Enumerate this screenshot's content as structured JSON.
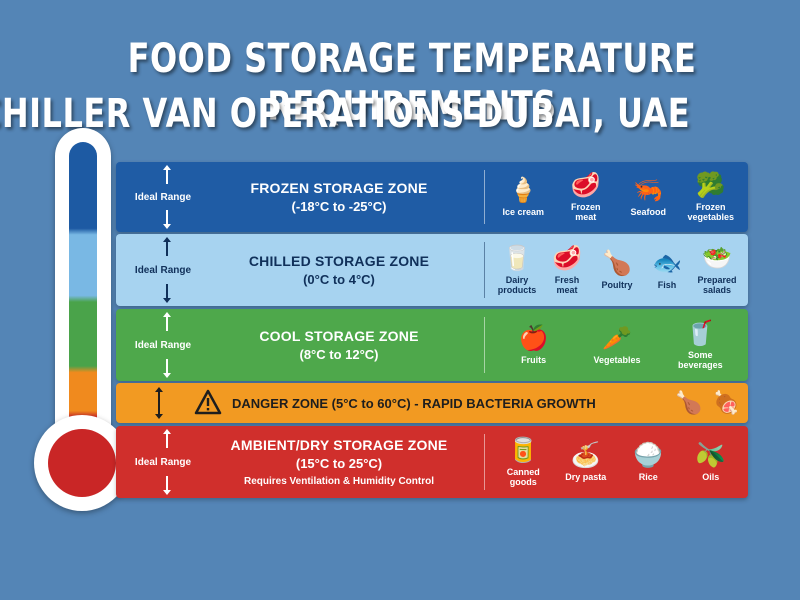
{
  "title": {
    "line1": "FOOD STORAGE TEMPERATURE REQUIREMENTS",
    "line2": "CHILLER VAN OPERATIONS DUBAI, UAE"
  },
  "colors": {
    "background": "#5485b6",
    "frozen": "#1f5ca5",
    "chilled": "#a7d3f0",
    "cool": "#4ea84b",
    "danger": "#f29a22",
    "ambient": "#d02f2c"
  },
  "zones": {
    "frozen": {
      "range_label": "Ideal Range",
      "name": "FROZEN STORAGE ZONE",
      "temp": "(-18°C to -25°C)",
      "items": [
        {
          "label": "Ice cream",
          "icon": "ice-cream-icon",
          "glyph": "🍦"
        },
        {
          "label": "Frozen\nmeat",
          "icon": "frozen-meat-icon",
          "glyph": "🥩"
        },
        {
          "label": "Seafood",
          "icon": "shrimp-icon",
          "glyph": "🦐"
        },
        {
          "label": "Frozen\nvegetables",
          "icon": "frozen-vegetables-icon",
          "glyph": "🥦"
        }
      ]
    },
    "chilled": {
      "range_label": "Ideal Range",
      "name": "CHILLED STORAGE ZONE",
      "temp": "(0°C to 4°C)",
      "items": [
        {
          "label": "Dairy\nproducts",
          "icon": "dairy-icon",
          "glyph": "🥛"
        },
        {
          "label": "Fresh\nmeat",
          "icon": "fresh-meat-icon",
          "glyph": "🥩"
        },
        {
          "label": "Poultry",
          "icon": "poultry-icon",
          "glyph": "🍗"
        },
        {
          "label": "Fish",
          "icon": "fish-icon",
          "glyph": "🐟"
        },
        {
          "label": "Prepared\nsalads",
          "icon": "salad-icon",
          "glyph": "🥗"
        }
      ]
    },
    "cool": {
      "range_label": "Ideal Range",
      "name": "COOL STORAGE ZONE",
      "temp": "(8°C to 12°C)",
      "items": [
        {
          "label": "Fruits",
          "icon": "fruits-icon",
          "glyph": "🍎"
        },
        {
          "label": "Vegetables",
          "icon": "vegetables-icon",
          "glyph": "🥕"
        },
        {
          "label": "Some\nbeverages",
          "icon": "beverages-icon",
          "glyph": "🥤"
        }
      ]
    },
    "danger": {
      "text": "DANGER ZONE (5°C to 60°C) - RAPID BACTERIA GROWTH",
      "icons": [
        {
          "icon": "roast-chicken-icon",
          "glyph": "🍗"
        },
        {
          "icon": "cooked-food-icon",
          "glyph": "🍖"
        }
      ]
    },
    "ambient": {
      "range_label": "Ideal Range",
      "name": "AMBIENT/DRY STORAGE ZONE",
      "temp": "(15°C to 25°C)",
      "note": "Requires Ventilation & Humidity Control",
      "items": [
        {
          "label": "Canned goods",
          "icon": "canned-goods-icon",
          "glyph": "🥫"
        },
        {
          "label": "Dry pasta",
          "icon": "dry-pasta-icon",
          "glyph": "🍝"
        },
        {
          "label": "Rice",
          "icon": "rice-icon",
          "glyph": "🍚"
        },
        {
          "label": "Oils",
          "icon": "oil-bottle-icon",
          "glyph": "🫒"
        }
      ]
    }
  }
}
